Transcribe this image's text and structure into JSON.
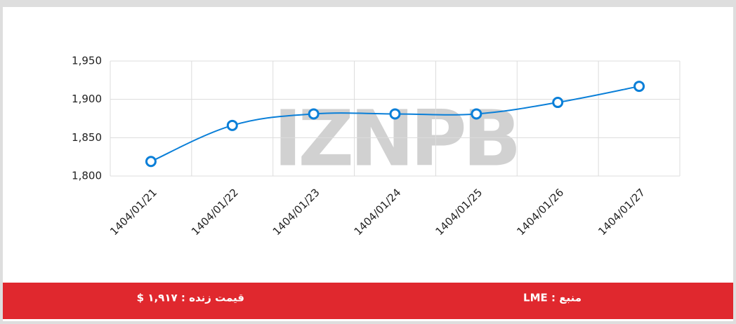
{
  "chart_data": {
    "type": "line",
    "categories": [
      "1404/01/21",
      "1404/01/22",
      "1404/01/23",
      "1404/01/24",
      "1404/01/25",
      "1404/01/26",
      "1404/01/27"
    ],
    "series": [
      {
        "color": "#0a7fd8",
        "values": [
          1819,
          1866,
          1881,
          1881,
          1881,
          1896,
          1917
        ]
      }
    ],
    "ylim": [
      1800,
      1950
    ],
    "yticks": [
      {
        "value": 1800,
        "label": "1,800"
      },
      {
        "value": 1850,
        "label": "1,850"
      },
      {
        "value": 1900,
        "label": "1,900"
      },
      {
        "value": 1950,
        "label": "1,950"
      }
    ],
    "grid": true
  },
  "watermark": "IZNPB",
  "footer": {
    "live_price": "قیمت زنده : ۱,۹۱۷ $",
    "source": "منبع : LME"
  }
}
